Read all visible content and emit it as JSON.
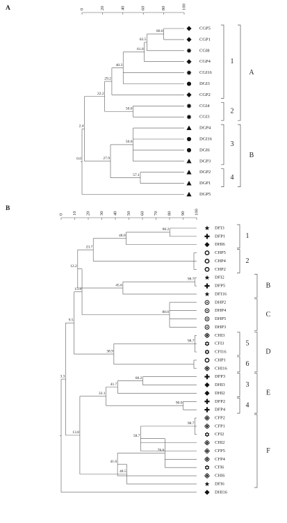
{
  "panels": [
    {
      "title": "A",
      "xlim": [
        0,
        100
      ],
      "ticks": [
        0,
        20,
        40,
        60,
        80,
        100
      ],
      "groups_inner": [
        "1",
        "2",
        "3",
        "4"
      ],
      "groups_outer": [
        "A",
        "B"
      ],
      "tree": {
        "value": 0,
        "label": "0.0",
        "children": [
          {
            "value": 2.4,
            "label": "2.4",
            "children": [
              {
                "value": 22.2,
                "label": "22.2",
                "children": [
                  {
                    "value": 29.2,
                    "label": "29.2",
                    "children": [
                      {
                        "value": 40.3,
                        "label": "40.3",
                        "children": [
                          {
                            "value": 61,
                            "label": "61.0",
                            "children": [
                              {
                                "value": 63.5,
                                "label": "63.5",
                                "children": [
                                  {
                                    "value": 80,
                                    "label": "80.0",
                                    "children": [
                                      {
                                        "name": "CGP5",
                                        "marker": "diamond"
                                      },
                                      {
                                        "name": "CGP1",
                                        "marker": "diamond"
                                      }
                                    ]
                                  },
                                  {
                                    "name": "CGI8",
                                    "marker": "gear"
                                  }
                                ]
                              },
                              {
                                "name": "CGP4",
                                "marker": "diamond"
                              }
                            ]
                          },
                          {
                            "name": "CGI16",
                            "marker": "gear"
                          },
                          {
                            "name": "DGI3",
                            "marker": "circle"
                          }
                        ]
                      },
                      {
                        "name": "CGP2",
                        "marker": "diamond"
                      }
                    ]
                  },
                  {
                    "value": 50,
                    "label": "50.0",
                    "children": [
                      {
                        "name": "CGI4",
                        "marker": "gear"
                      },
                      {
                        "name": "CGI3",
                        "marker": "gear"
                      }
                    ]
                  }
                ]
              },
              {
                "value": 27.9,
                "label": "27.9",
                "children": [
                  {
                    "value": 50,
                    "label": "50.0",
                    "children": [
                      {
                        "name": "DGP4",
                        "marker": "triangle"
                      },
                      {
                        "name": "DGI16",
                        "marker": "circle"
                      },
                      {
                        "name": "DGI6",
                        "marker": "circle"
                      },
                      {
                        "name": "DGP3",
                        "marker": "triangle"
                      }
                    ]
                  },
                  {
                    "value": 57.1,
                    "label": "57.1",
                    "children": [
                      {
                        "name": "DGP2",
                        "marker": "triangle"
                      },
                      {
                        "name": "DGP1",
                        "marker": "triangle"
                      }
                    ]
                  }
                ]
              }
            ]
          },
          {
            "name": "DGP5",
            "marker": "triangle"
          }
        ]
      }
    },
    {
      "title": "B",
      "xlim": [
        0,
        100
      ],
      "ticks": [
        0,
        10,
        20,
        30,
        40,
        50,
        60,
        70,
        80,
        90,
        100
      ],
      "groups_inner": [
        "1",
        "2",
        "5",
        "6",
        "3",
        "4"
      ],
      "groups_outer": [
        "B",
        "C",
        "D",
        "E",
        "F"
      ],
      "tree": {
        "children": [
          {
            "value": 3.3,
            "label": "3.3",
            "children": [
              {
                "value": 9.5,
                "label": "9.5",
                "children": [
                  {
                    "value": 15.4,
                    "label": "15.4",
                    "children": [
                      {
                        "value": 12.2,
                        "label": "12.2",
                        "children": [
                          {
                            "value": 23.7,
                            "label": "23.7",
                            "children": [
                              {
                                "value": 48,
                                "label": "48.0",
                                "children": [
                                  {
                                    "value": 80.2,
                                    "label": "80.2",
                                    "children": [
                                      {
                                        "name": "DFI3",
                                        "marker": "star"
                                      },
                                      {
                                        "name": "DFP1",
                                        "marker": "cross"
                                      }
                                    ]
                                  },
                                  {
                                    "name": "DHI6",
                                    "marker": "diamond"
                                  }
                                ]
                              },
                              {
                                "children": [
                                  {
                                    "name": "CHP5",
                                    "marker": "ring"
                                  },
                                  {
                                    "name": "CHP4",
                                    "marker": "ring"
                                  },
                                  {
                                    "name": "CHP2",
                                    "marker": "ring"
                                  }
                                ]
                              }
                            ]
                          },
                          {
                            "value": 45.6,
                            "label": "45.6",
                            "children": [
                              {
                                "value": 98.7,
                                "label": "98.7",
                                "children": [
                                  {
                                    "name": "DFI2",
                                    "marker": "star"
                                  },
                                  {
                                    "name": "DFP5",
                                    "marker": "cross"
                                  }
                                ]
                              },
                              {
                                "name": "DFI16",
                                "marker": "star"
                              }
                            ]
                          }
                        ]
                      },
                      {
                        "value": 80,
                        "label": "80.0",
                        "children": [
                          {
                            "name": "DHP2",
                            "marker": "dotring"
                          },
                          {
                            "name": "DHP4",
                            "marker": "dotring"
                          },
                          {
                            "name": "DHP5",
                            "marker": "dotring"
                          },
                          {
                            "name": "DHP3",
                            "marker": "dotring"
                          }
                        ]
                      }
                    ]
                  },
                  {
                    "value": 38.9,
                    "label": "38.9",
                    "children": [
                      {
                        "value": 98.7,
                        "label": "98.7",
                        "children": [
                          {
                            "name": "CHI3",
                            "marker": "clover"
                          },
                          {
                            "name": "CFI3",
                            "marker": "flower"
                          },
                          {
                            "name": "CFI16",
                            "marker": "flower"
                          }
                        ]
                      },
                      {
                        "children": [
                          {
                            "name": "CHP1",
                            "marker": "ring"
                          },
                          {
                            "name": "CHI16",
                            "marker": "clover"
                          }
                        ]
                      }
                    ]
                  }
                ]
              },
              {
                "value": 13.8,
                "label": "13.8",
                "children": [
                  {
                    "value": 33.1,
                    "label": "33.1",
                    "children": [
                      {
                        "value": 41.7,
                        "label": "41.7",
                        "children": [
                          {
                            "value": 60.2,
                            "label": "60.2",
                            "children": [
                              {
                                "name": "DFP3",
                                "marker": "cross"
                              },
                              {
                                "name": "DHI3",
                                "marker": "diamond"
                              }
                            ]
                          },
                          {
                            "name": "DHI2",
                            "marker": "diamond"
                          }
                        ]
                      },
                      {
                        "value": 90,
                        "label": "90.0",
                        "children": [
                          {
                            "name": "DFP2",
                            "marker": "cross"
                          },
                          {
                            "name": "DFP4",
                            "marker": "cross"
                          }
                        ]
                      }
                    ]
                  },
                  {
                    "value": 48.5,
                    "label": "48.5",
                    "children": [
                      {
                        "value": 41.6,
                        "label": "41.6",
                        "children": [
                          {
                            "value": 76.6,
                            "label": "76.6",
                            "children": [
                              {
                                "value": 58.7,
                                "label": "58.7",
                                "children": [
                                  {
                                    "value": 98.7,
                                    "label": "98.7",
                                    "children": [
                                      {
                                        "name": "CFP2",
                                        "marker": "clover"
                                      },
                                      {
                                        "name": "CFP1",
                                        "marker": "clover"
                                      },
                                      {
                                        "name": "CFI2",
                                        "marker": "flower"
                                      }
                                    ]
                                  },
                                  {
                                    "name": "CHI2",
                                    "marker": "clover"
                                  },
                                  {
                                    "name": "CFP5",
                                    "marker": "clover"
                                  }
                                ]
                              },
                              {
                                "name": "CFP4",
                                "marker": "clover"
                              },
                              {
                                "name": "CFI6",
                                "marker": "flower"
                              }
                            ]
                          },
                          {
                            "name": "CHI6",
                            "marker": "clover"
                          }
                        ]
                      },
                      {
                        "name": "DFI6",
                        "marker": "star"
                      }
                    ]
                  }
                ]
              }
            ]
          },
          {
            "name": "DHI16",
            "marker": "diamond"
          }
        ]
      }
    }
  ]
}
